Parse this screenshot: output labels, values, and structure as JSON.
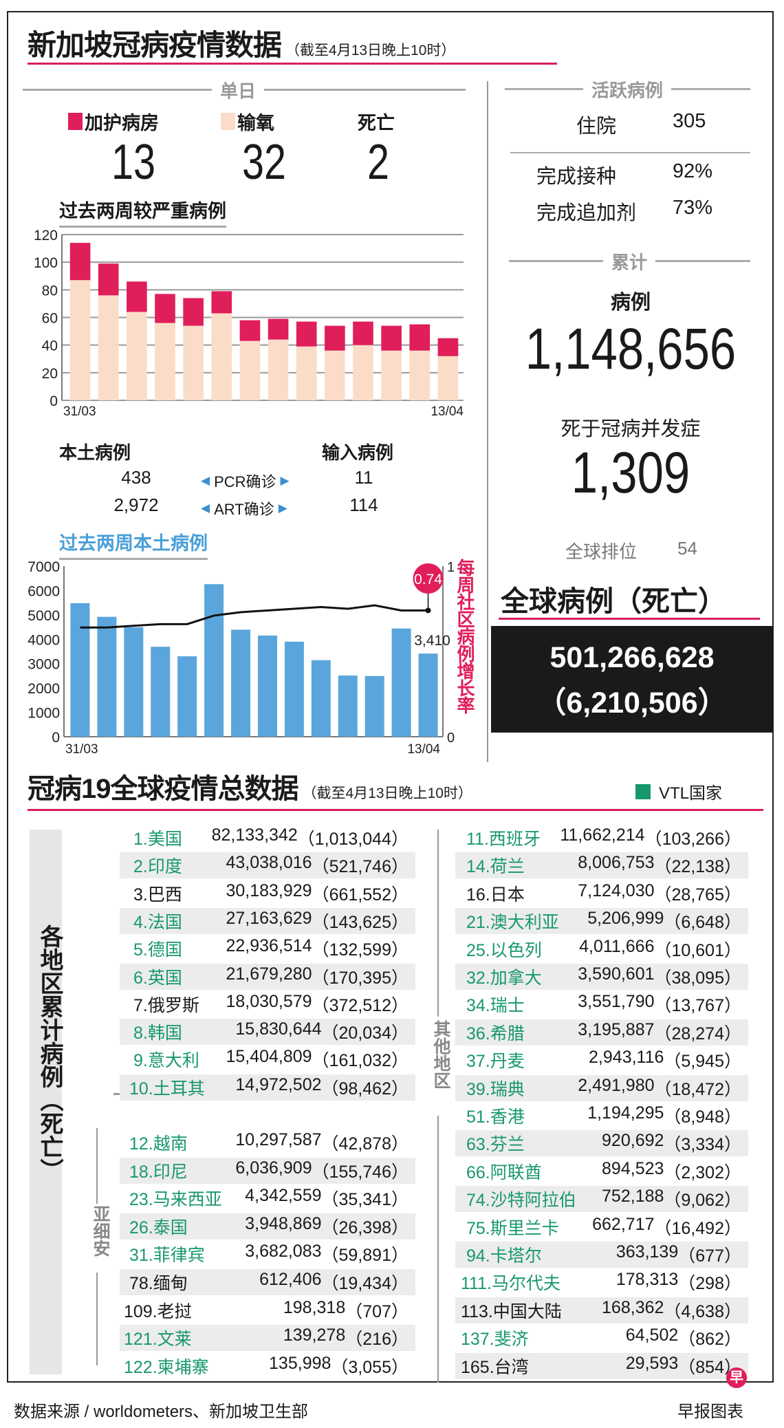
{
  "header": {
    "title": "新加坡冠病疫情数据",
    "subtitle": "（截至4月13日晚上10时）"
  },
  "colors": {
    "accent_red": "#d91e5b",
    "icu": "#e01e5a",
    "oxygen": "#fbdcc8",
    "local_bar": "#5aa6dc",
    "vtl_green": "#17986b",
    "stripe": "#ececec"
  },
  "daily": {
    "heading": "单日",
    "icu_label": "加护病房",
    "icu_value": "13",
    "oxygen_label": "输氧",
    "oxygen_value": "32",
    "death_label": "死亡",
    "death_value": "2"
  },
  "active": {
    "heading": "活跃病例",
    "hospital_label": "住院",
    "hospital_value": "305",
    "vacc_label": "完成接种",
    "vacc_value": "92%",
    "booster_label": "完成追加剂",
    "booster_value": "73%"
  },
  "cumulative": {
    "heading": "累计",
    "cases_label": "病例",
    "cases_value": "1,148,656",
    "deaths_label": "死于冠病并发症",
    "deaths_value": "1,309",
    "rank_label": "全球排位",
    "rank_value": "54"
  },
  "global_total": {
    "title": "全球病例（死亡）",
    "cases": "501,266,628",
    "deaths": "（6,210,506）"
  },
  "cases_breakdown": {
    "local_label": "本土病例",
    "imported_label": "输入病例",
    "pcr_label": "PCR确诊",
    "art_label": "ART确诊",
    "local_pcr": "438",
    "local_art": "2,972",
    "imported_pcr": "11",
    "imported_art": "114"
  },
  "chart_data": [
    {
      "type": "bar",
      "stacked": true,
      "title": "过去两周较严重病例",
      "x_tick_labels": [
        "31/03",
        "13/04"
      ],
      "ylim": [
        0,
        120
      ],
      "y_ticks": [
        0,
        20,
        40,
        60,
        80,
        100,
        120
      ],
      "grid": true,
      "series": [
        {
          "name": "输氧",
          "color": "#fbdcc8",
          "values": [
            87,
            76,
            64,
            56,
            54,
            63,
            43,
            44,
            39,
            36,
            40,
            36,
            36,
            32
          ]
        },
        {
          "name": "加护病房",
          "color": "#e01e5a",
          "values": [
            27,
            23,
            22,
            21,
            20,
            16,
            15,
            15,
            18,
            18,
            17,
            18,
            19,
            13
          ]
        }
      ]
    },
    {
      "type": "bar",
      "title": "过去两周本土病例",
      "x_tick_labels": [
        "31/03",
        "13/04"
      ],
      "ylim": [
        0,
        7000
      ],
      "y_ticks": [
        0,
        1000,
        2000,
        3000,
        4000,
        5000,
        6000,
        7000
      ],
      "values": [
        5480,
        4920,
        4490,
        3690,
        3300,
        6260,
        4390,
        4150,
        3900,
        3140,
        2510,
        2490,
        4440,
        3410
      ],
      "last_value_label": "3,410",
      "color": "#5aa6dc",
      "line": {
        "name": "每周社区病例增长率",
        "axis": "right",
        "ylim": [
          0,
          1
        ],
        "y_ticks": [
          "0",
          "1"
        ],
        "values": [
          0.64,
          0.64,
          0.65,
          0.66,
          0.66,
          0.71,
          0.73,
          0.74,
          0.75,
          0.76,
          0.75,
          0.77,
          0.74,
          0.74
        ],
        "last_value_label": "0.74"
      }
    }
  ],
  "global": {
    "title": "冠病19全球疫情总数据",
    "subtitle": "（截至4月13日晚上10时）",
    "legend_vtl": "VTL国家",
    "side_label": "各地区累计病例（死亡）",
    "asean_label": "亚细安",
    "others_label": "其他地区",
    "top10": [
      {
        "label": "1.美国",
        "cases": "82,133,342",
        "deaths": "1,013,044",
        "vtl": true
      },
      {
        "label": "2.印度",
        "cases": "43,038,016",
        "deaths": "521,746",
        "vtl": true
      },
      {
        "label": "3.巴西",
        "cases": "30,183,929",
        "deaths": "661,552",
        "vtl": false
      },
      {
        "label": "4.法国",
        "cases": "27,163,629",
        "deaths": "143,625",
        "vtl": true
      },
      {
        "label": "5.德国",
        "cases": "22,936,514",
        "deaths": "132,599",
        "vtl": true
      },
      {
        "label": "6.英国",
        "cases": "21,679,280",
        "deaths": "170,395",
        "vtl": true
      },
      {
        "label": "7.俄罗斯",
        "cases": "18,030,579",
        "deaths": "372,512",
        "vtl": false
      },
      {
        "label": "8.韩国",
        "cases": "15,830,644",
        "deaths": "20,034",
        "vtl": true
      },
      {
        "label": "9.意大利",
        "cases": "15,404,809",
        "deaths": "161,032",
        "vtl": true
      },
      {
        "label": "10.土耳其",
        "cases": "14,972,502",
        "deaths": "98,462",
        "vtl": true
      }
    ],
    "asean": [
      {
        "label": "12.越南",
        "cases": "10,297,587",
        "deaths": "42,878",
        "vtl": true
      },
      {
        "label": "18.印尼",
        "cases": "6,036,909",
        "deaths": "155,746",
        "vtl": true
      },
      {
        "label": "23.马来西亚",
        "cases": "4,342,559",
        "deaths": "35,341",
        "vtl": true
      },
      {
        "label": "26.泰国",
        "cases": "3,948,869",
        "deaths": "26,398",
        "vtl": true
      },
      {
        "label": "31.菲律宾",
        "cases": "3,682,083",
        "deaths": "59,891",
        "vtl": true
      },
      {
        "label": "78.缅甸",
        "cases": "612,406",
        "deaths": "19,434",
        "vtl": false
      },
      {
        "label": "109.老挝",
        "cases": "198,318",
        "deaths": "707",
        "vtl": false
      },
      {
        "label": "121.文莱",
        "cases": "139,278",
        "deaths": "216",
        "vtl": true
      },
      {
        "label": "122.柬埔寨",
        "cases": "135,998",
        "deaths": "3,055",
        "vtl": true
      }
    ],
    "others": [
      {
        "label": "11.西班牙",
        "cases": "11,662,214",
        "deaths": "103,266",
        "vtl": true
      },
      {
        "label": "14.荷兰",
        "cases": "8,006,753",
        "deaths": "22,138",
        "vtl": true
      },
      {
        "label": "16.日本",
        "cases": "7,124,030",
        "deaths": "28,765",
        "vtl": false
      },
      {
        "label": "21.澳大利亚",
        "cases": "5,206,999",
        "deaths": "6,648",
        "vtl": true
      },
      {
        "label": "25.以色列",
        "cases": "4,011,666",
        "deaths": "10,601",
        "vtl": true
      },
      {
        "label": "32.加拿大",
        "cases": "3,590,601",
        "deaths": "38,095",
        "vtl": true
      },
      {
        "label": "34.瑞士",
        "cases": "3,551,790",
        "deaths": "13,767",
        "vtl": true
      },
      {
        "label": "36.希腊",
        "cases": "3,195,887",
        "deaths": "28,274",
        "vtl": true
      },
      {
        "label": "37.丹麦",
        "cases": "2,943,116",
        "deaths": "5,945",
        "vtl": true
      },
      {
        "label": "39.瑞典",
        "cases": "2,491,980",
        "deaths": "18,472",
        "vtl": true
      },
      {
        "label": "51.香港",
        "cases": "1,194,295",
        "deaths": "8,948",
        "vtl": true
      },
      {
        "label": "63.芬兰",
        "cases": "920,692",
        "deaths": "3,334",
        "vtl": true
      },
      {
        "label": "66.阿联酋",
        "cases": "894,523",
        "deaths": "2,302",
        "vtl": true
      },
      {
        "label": "74.沙特阿拉伯",
        "cases": "752,188",
        "deaths": "9,062",
        "vtl": true
      },
      {
        "label": "75.斯里兰卡",
        "cases": "662,717",
        "deaths": "16,492",
        "vtl": true
      },
      {
        "label": "94.卡塔尔",
        "cases": "363,139",
        "deaths": "677",
        "vtl": true
      },
      {
        "label": "111.马尔代夫",
        "cases": "178,313",
        "deaths": "298",
        "vtl": true
      },
      {
        "label": "113.中国大陆",
        "cases": "168,362",
        "deaths": "4,638",
        "vtl": false
      },
      {
        "label": "137.斐济",
        "cases": "64,502",
        "deaths": "862",
        "vtl": true
      },
      {
        "label": "165.台湾",
        "cases": "29,593",
        "deaths": "854",
        "vtl": false
      }
    ]
  },
  "footer": {
    "source": "数据来源 / worldometers、新加坡卫生部",
    "credit": "早报图表",
    "logo_text": "早"
  }
}
